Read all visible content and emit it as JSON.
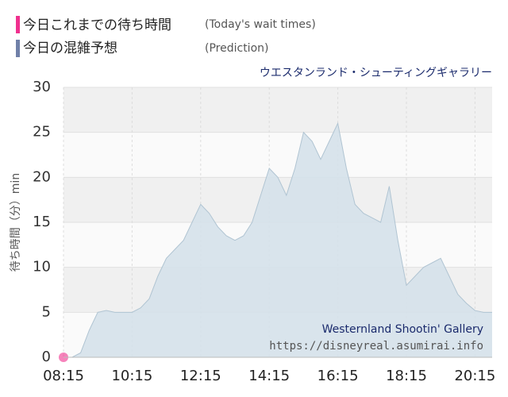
{
  "chart_data": {
    "type": "area",
    "title": "ウエスタンランド・シューティングギャラリー",
    "y_label": "待ち時間（分）min",
    "watermark": [
      "Westernland Shootin' Gallery",
      "https://disneyreal.asumirai.info"
    ],
    "series": [
      {
        "name": "今日これまでの待ち時間",
        "note": "(Today's wait times)",
        "color": "#f0308e",
        "kind": "point",
        "x": [
          "08:15"
        ],
        "values": [
          0
        ]
      },
      {
        "name": "今日の混雑予想",
        "note": "(Prediction)",
        "color": "#7080a8",
        "kind": "area",
        "x": [
          "08:15",
          "08:30",
          "08:45",
          "09:00",
          "09:15",
          "09:30",
          "09:45",
          "10:00",
          "10:15",
          "10:30",
          "10:45",
          "11:00",
          "11:15",
          "11:30",
          "11:45",
          "12:00",
          "12:15",
          "12:30",
          "12:45",
          "13:00",
          "13:15",
          "13:30",
          "13:45",
          "14:00",
          "14:15",
          "14:30",
          "14:45",
          "15:00",
          "15:15",
          "15:30",
          "15:45",
          "16:00",
          "16:15",
          "16:30",
          "16:45",
          "17:00",
          "17:15",
          "17:30",
          "17:45",
          "18:00",
          "18:15",
          "18:30",
          "18:45",
          "19:00",
          "19:15",
          "19:30",
          "19:45",
          "20:00",
          "20:15",
          "20:30",
          "20:45"
        ],
        "values": [
          0,
          0,
          0.5,
          3,
          5,
          5.2,
          5,
          5,
          5,
          5.5,
          6.5,
          9,
          11,
          12,
          13,
          15,
          17,
          16,
          14.5,
          13.5,
          13,
          13.5,
          15,
          18,
          21,
          20,
          18,
          21,
          25,
          24,
          22,
          24,
          26,
          21,
          17,
          16,
          15.5,
          15,
          19,
          13,
          8,
          9,
          10,
          10.5,
          11,
          9,
          7,
          6,
          5.2,
          5,
          5
        ]
      }
    ],
    "xlim": [
      "08:15",
      "20:45"
    ],
    "xticks": [
      "08:15",
      "10:15",
      "12:15",
      "14:15",
      "16:15",
      "18:15",
      "20:15"
    ],
    "ylim": [
      0,
      30
    ],
    "yticks": [
      0,
      5,
      10,
      15,
      20,
      25,
      30
    ],
    "grid": true
  }
}
